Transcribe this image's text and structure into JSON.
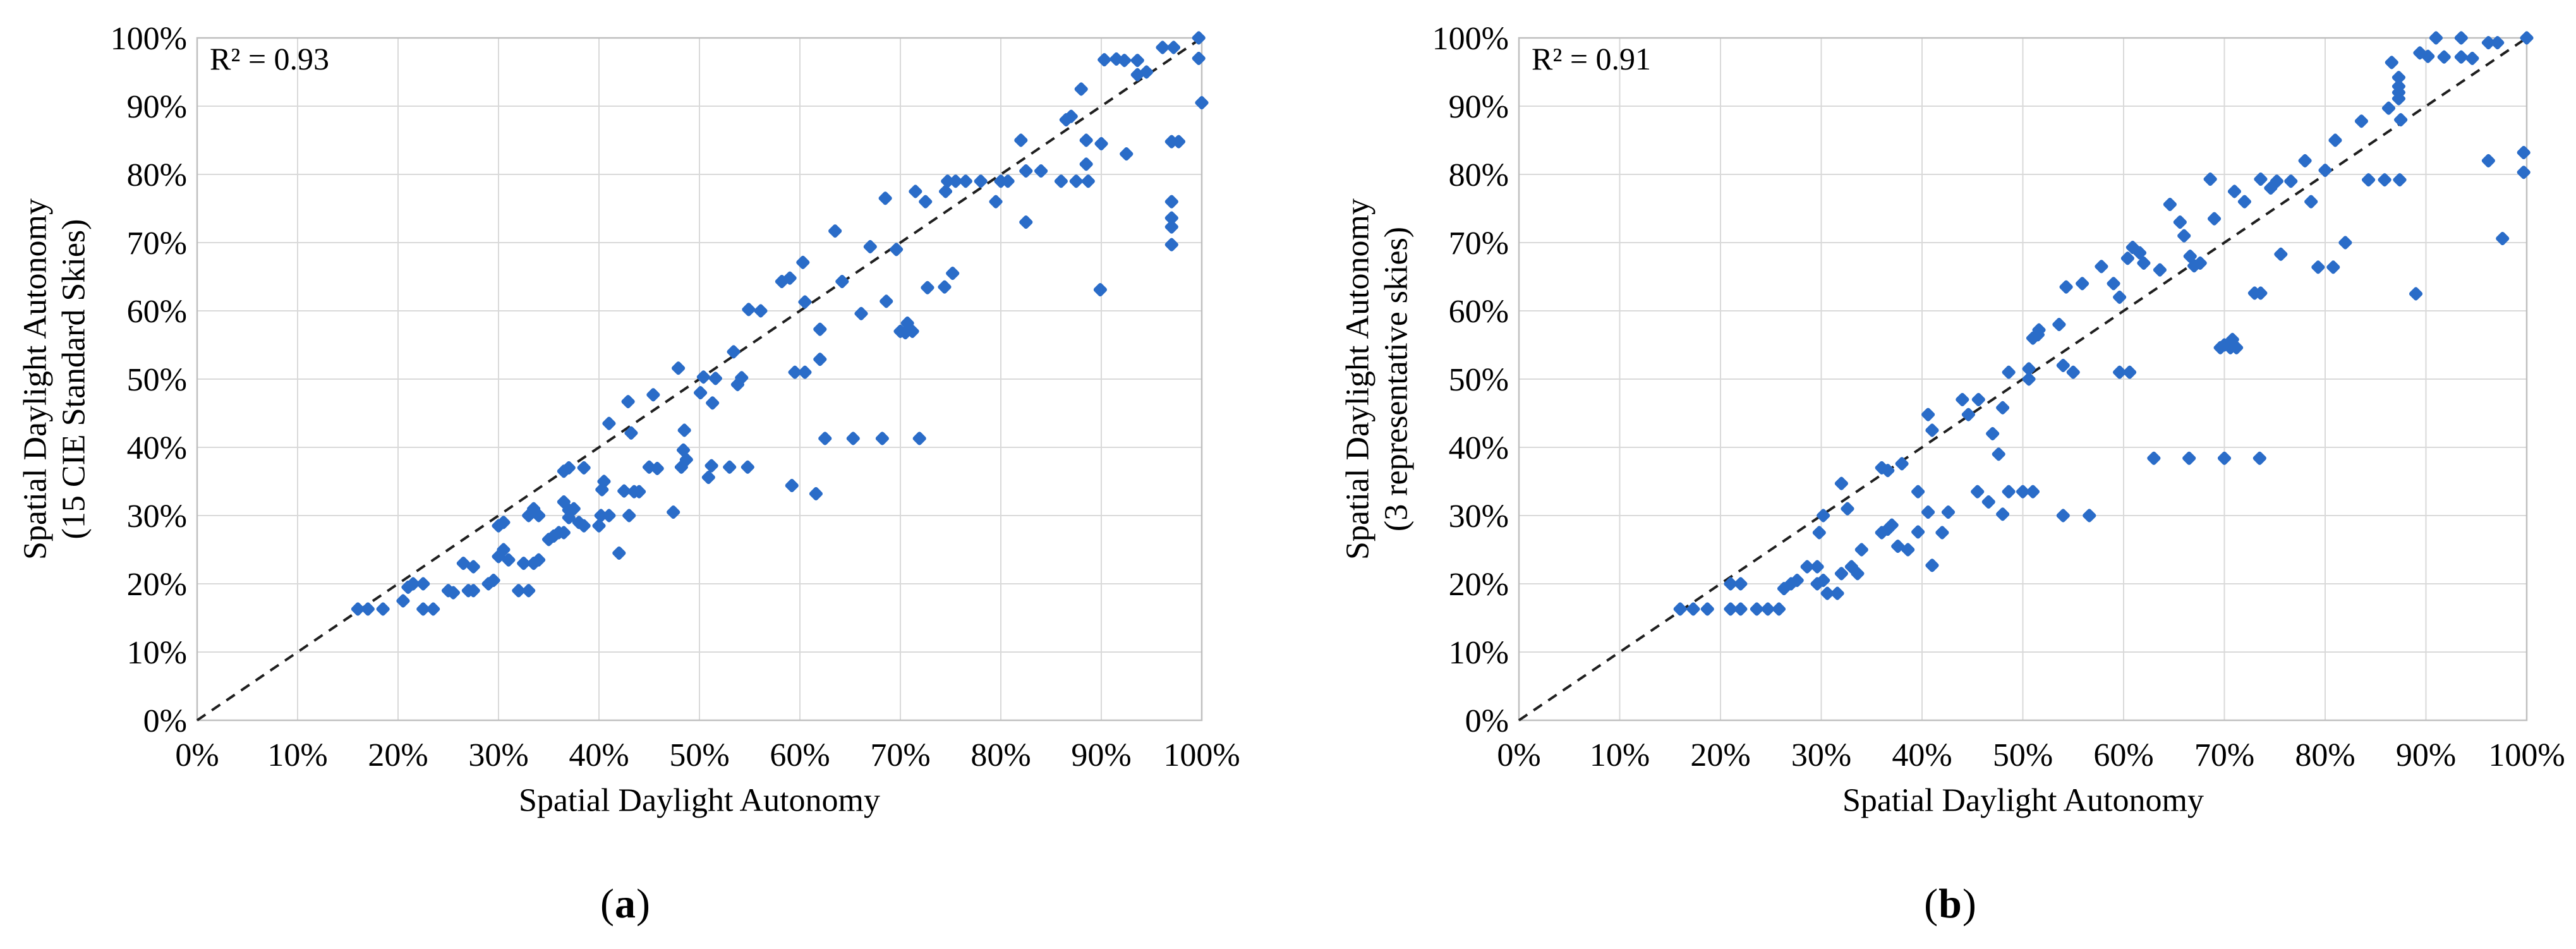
{
  "style": {
    "background": "#ffffff",
    "dot_color": "#2A6CC8",
    "grid_color": "#D9D9D9",
    "frame_color": "#BFBFBF",
    "identity_line_color": "#1F1F1F",
    "text_color": "#000000"
  },
  "chart_data": [
    {
      "type": "scatter",
      "panel": "a",
      "annotation": "R² = 0.93",
      "xlabel": "Spatial Daylight Autonomy",
      "ylabel_line1": "Spatial Daylight Autonomy",
      "ylabel_line2": "(15 CIE Standard Skies)",
      "caption": {
        "open": "(",
        "letter": "a",
        "close": ")"
      },
      "xlim": [
        0,
        100
      ],
      "ylim": [
        0,
        100
      ],
      "grid": true,
      "reference_line": "dashed identity line y = x from 0% to 100%",
      "x_tick_labels": [
        "0%",
        "10%",
        "20%",
        "30%",
        "40%",
        "50%",
        "60%",
        "70%",
        "80%",
        "90%",
        "100%"
      ],
      "y_tick_labels": [
        "0%",
        "10%",
        "20%",
        "30%",
        "40%",
        "50%",
        "60%",
        "70%",
        "80%",
        "90%",
        "100%"
      ],
      "points": [
        [
          16,
          16.3
        ],
        [
          17,
          16.3
        ],
        [
          18.5,
          16.3
        ],
        [
          20.5,
          17.5
        ],
        [
          21,
          19.5
        ],
        [
          21.5,
          20
        ],
        [
          22.5,
          20
        ],
        [
          22.5,
          16.3
        ],
        [
          23.5,
          16.3
        ],
        [
          25,
          19
        ],
        [
          25.5,
          18.7
        ],
        [
          27,
          19
        ],
        [
          27.5,
          19
        ],
        [
          26.5,
          23
        ],
        [
          27.5,
          22.5
        ],
        [
          29,
          20
        ],
        [
          29.5,
          20.5
        ],
        [
          30,
          24
        ],
        [
          30.5,
          25
        ],
        [
          31,
          23.5
        ],
        [
          30,
          28.5
        ],
        [
          30.5,
          29
        ],
        [
          32,
          19
        ],
        [
          33,
          19
        ],
        [
          32.5,
          23
        ],
        [
          33.5,
          23
        ],
        [
          34,
          23.5
        ],
        [
          33,
          30
        ],
        [
          33.5,
          31
        ],
        [
          34,
          30
        ],
        [
          35,
          26.5
        ],
        [
          35.5,
          27
        ],
        [
          36,
          27.5
        ],
        [
          36.5,
          27.5
        ],
        [
          36.5,
          32
        ],
        [
          37,
          30.8
        ],
        [
          37,
          29.7
        ],
        [
          37.5,
          31
        ],
        [
          38,
          29
        ],
        [
          38.5,
          28.5
        ],
        [
          36.5,
          36.5
        ],
        [
          37,
          37
        ],
        [
          38.5,
          37
        ],
        [
          40,
          28.5
        ],
        [
          40.2,
          30
        ],
        [
          41,
          30
        ],
        [
          40.5,
          35
        ],
        [
          40.3,
          33.8
        ],
        [
          42.5,
          33.6
        ],
        [
          41,
          43.5
        ],
        [
          42,
          24.5
        ],
        [
          43,
          30
        ],
        [
          43.5,
          33.5
        ],
        [
          44,
          33.5
        ],
        [
          43.2,
          42.1
        ],
        [
          42.9,
          46.7
        ],
        [
          45.4,
          47.7
        ],
        [
          45,
          37.1
        ],
        [
          45.8,
          36.9
        ],
        [
          48.2,
          37.1
        ],
        [
          48.4,
          39.6
        ],
        [
          48.7,
          38.2
        ],
        [
          51.2,
          37.3
        ],
        [
          53,
          37.1
        ],
        [
          54.8,
          37.1
        ],
        [
          50.9,
          35.6
        ],
        [
          47.4,
          30.5
        ],
        [
          47.9,
          51.6
        ],
        [
          48.5,
          42.5
        ],
        [
          50.4,
          50.3
        ],
        [
          51.6,
          50.1
        ],
        [
          54.2,
          50.2
        ],
        [
          50.1,
          48
        ],
        [
          51.3,
          46.5
        ],
        [
          53.4,
          54
        ],
        [
          53.8,
          49.2
        ],
        [
          59.2,
          34.4
        ],
        [
          61.6,
          33.2
        ],
        [
          54.9,
          60.2
        ],
        [
          56.1,
          60
        ],
        [
          59.5,
          51
        ],
        [
          60.5,
          51
        ],
        [
          58.2,
          64.3
        ],
        [
          59,
          64.8
        ],
        [
          60.3,
          67.1
        ],
        [
          60.5,
          61.3
        ],
        [
          62,
          57.3
        ],
        [
          62,
          52.9
        ],
        [
          62.5,
          41.3
        ],
        [
          65.3,
          41.3
        ],
        [
          68.2,
          41.3
        ],
        [
          71.9,
          41.3
        ],
        [
          63.5,
          71.7
        ],
        [
          64.2,
          64.3
        ],
        [
          66.1,
          59.6
        ],
        [
          67,
          69.4
        ],
        [
          69.6,
          69
        ],
        [
          68.6,
          61.4
        ],
        [
          68.5,
          76.5
        ],
        [
          70,
          57
        ],
        [
          70.5,
          56.8
        ],
        [
          70.7,
          58.2
        ],
        [
          71.2,
          57
        ],
        [
          71.5,
          77.5
        ],
        [
          72.5,
          76
        ],
        [
          72.7,
          63.4
        ],
        [
          74.4,
          63.5
        ],
        [
          74.5,
          77.5
        ],
        [
          74.7,
          79
        ],
        [
          75.2,
          65.5
        ],
        [
          75.5,
          79
        ],
        [
          76.5,
          79
        ],
        [
          78,
          79
        ],
        [
          79.5,
          76
        ],
        [
          80,
          79
        ],
        [
          80.7,
          79
        ],
        [
          82,
          85
        ],
        [
          82.5,
          80.5
        ],
        [
          84,
          80.5
        ],
        [
          82.5,
          73
        ],
        [
          86,
          79
        ],
        [
          86.5,
          88
        ],
        [
          87,
          88.5
        ],
        [
          87.5,
          79
        ],
        [
          88,
          92.5
        ],
        [
          88.5,
          85
        ],
        [
          88.7,
          79
        ],
        [
          88.5,
          81.5
        ],
        [
          89.9,
          63.1
        ],
        [
          90,
          84.5
        ],
        [
          90.3,
          96.8
        ],
        [
          91.5,
          96.9
        ],
        [
          92.3,
          96.7
        ],
        [
          93.6,
          96.7
        ],
        [
          93.6,
          94.6
        ],
        [
          92.5,
          83
        ],
        [
          94.5,
          95
        ],
        [
          96.1,
          98.6
        ],
        [
          97.2,
          98.6
        ],
        [
          97,
          84.8
        ],
        [
          97.7,
          84.8
        ],
        [
          97,
          76
        ],
        [
          97,
          73.6
        ],
        [
          97,
          72.3
        ],
        [
          97,
          69.7
        ],
        [
          99.7,
          100
        ],
        [
          99.7,
          97
        ],
        [
          100,
          90.5
        ]
      ]
    },
    {
      "type": "scatter",
      "panel": "b",
      "annotation": "R² = 0.91",
      "xlabel": "Spatial Daylight Autonomy",
      "ylabel_line1": "Spatial Daylight Autonomy",
      "ylabel_line2": "(3 representative skies)",
      "caption": {
        "open": "(",
        "letter": "b",
        "close": ")"
      },
      "xlim": [
        0,
        100
      ],
      "ylim": [
        0,
        100
      ],
      "grid": true,
      "reference_line": "dashed identity line y = x from 0% to 100%",
      "x_tick_labels": [
        "0%",
        "10%",
        "20%",
        "30%",
        "40%",
        "50%",
        "60%",
        "70%",
        "80%",
        "90%",
        "100%"
      ],
      "y_tick_labels": [
        "0%",
        "10%",
        "20%",
        "30%",
        "40%",
        "50%",
        "60%",
        "70%",
        "80%",
        "90%",
        "100%"
      ],
      "points": [
        [
          16,
          16.3
        ],
        [
          17.3,
          16.3
        ],
        [
          18.7,
          16.3
        ],
        [
          21,
          16.3
        ],
        [
          22,
          16.3
        ],
        [
          23.6,
          16.3
        ],
        [
          24.7,
          16.3
        ],
        [
          25.8,
          16.3
        ],
        [
          21,
          20
        ],
        [
          22,
          20
        ],
        [
          26.3,
          19.3
        ],
        [
          27,
          20
        ],
        [
          27.6,
          20.5
        ],
        [
          28.6,
          22.5
        ],
        [
          29.6,
          22.5
        ],
        [
          29.6,
          20
        ],
        [
          30.2,
          20.5
        ],
        [
          29.8,
          27.5
        ],
        [
          30.2,
          30
        ],
        [
          30.6,
          18.6
        ],
        [
          31.6,
          18.6
        ],
        [
          32,
          21.5
        ],
        [
          32.6,
          31
        ],
        [
          32,
          34.7
        ],
        [
          33,
          22.5
        ],
        [
          33.6,
          21.5
        ],
        [
          34,
          25
        ],
        [
          36,
          27.5
        ],
        [
          36.6,
          28
        ],
        [
          36,
          37
        ],
        [
          36.6,
          36.6
        ],
        [
          37,
          28.6
        ],
        [
          37.6,
          25.5
        ],
        [
          38.6,
          25
        ],
        [
          38,
          37.6
        ],
        [
          39.6,
          33.5
        ],
        [
          39.6,
          27.6
        ],
        [
          40.6,
          30.5
        ],
        [
          41,
          22.7
        ],
        [
          41,
          42.5
        ],
        [
          40.6,
          44.8
        ],
        [
          42,
          27.5
        ],
        [
          42.6,
          30.5
        ],
        [
          44,
          47
        ],
        [
          44.6,
          44.8
        ],
        [
          45.6,
          47
        ],
        [
          45.5,
          33.5
        ],
        [
          46.6,
          32
        ],
        [
          47,
          42
        ],
        [
          47.6,
          39
        ],
        [
          48,
          30.2
        ],
        [
          48.6,
          33.5
        ],
        [
          48,
          45.8
        ],
        [
          48.6,
          51
        ],
        [
          50,
          33.5
        ],
        [
          50.6,
          50
        ],
        [
          50.6,
          51.5
        ],
        [
          51,
          33.5
        ],
        [
          51,
          56
        ],
        [
          51.5,
          56.5
        ],
        [
          51.6,
          57.2
        ],
        [
          53.6,
          58
        ],
        [
          54,
          52
        ],
        [
          54,
          30
        ],
        [
          55,
          51
        ],
        [
          56.6,
          30
        ],
        [
          54.3,
          63.5
        ],
        [
          55.9,
          64
        ],
        [
          57.8,
          66.5
        ],
        [
          59,
          64
        ],
        [
          59.6,
          62
        ],
        [
          59.6,
          51
        ],
        [
          60.6,
          51
        ],
        [
          60.4,
          67.7
        ],
        [
          60.9,
          69.3
        ],
        [
          61.6,
          68.5
        ],
        [
          62,
          67
        ],
        [
          63.6,
          66
        ],
        [
          63,
          38.4
        ],
        [
          66.5,
          38.4
        ],
        [
          70,
          38.4
        ],
        [
          73.5,
          38.4
        ],
        [
          64.6,
          75.6
        ],
        [
          65.6,
          73
        ],
        [
          66,
          71
        ],
        [
          66.6,
          68
        ],
        [
          67,
          66.6
        ],
        [
          67.6,
          67
        ],
        [
          68.6,
          79.3
        ],
        [
          69,
          73.5
        ],
        [
          69.6,
          54.6
        ],
        [
          70,
          55
        ],
        [
          70.6,
          54.6
        ],
        [
          70.8,
          55.8
        ],
        [
          71.2,
          54.6
        ],
        [
          71,
          77.5
        ],
        [
          72,
          76
        ],
        [
          73,
          62.6
        ],
        [
          73.6,
          62.6
        ],
        [
          73.6,
          79.3
        ],
        [
          74.6,
          78
        ],
        [
          75.2,
          79
        ],
        [
          75.6,
          68.3
        ],
        [
          76.6,
          79
        ],
        [
          79.3,
          66.4
        ],
        [
          80.8,
          66.4
        ],
        [
          78,
          82
        ],
        [
          78.6,
          76
        ],
        [
          80,
          80.6
        ],
        [
          81,
          85
        ],
        [
          82,
          70
        ],
        [
          83.6,
          87.8
        ],
        [
          84.3,
          79.2
        ],
        [
          85.9,
          79.2
        ],
        [
          87.4,
          79.2
        ],
        [
          86.3,
          89.7
        ],
        [
          86.6,
          96.4
        ],
        [
          87.3,
          94.2
        ],
        [
          87.3,
          92.9
        ],
        [
          87.3,
          92
        ],
        [
          87.3,
          91.1
        ],
        [
          87.5,
          88
        ],
        [
          89,
          62.5
        ],
        [
          89.4,
          97.8
        ],
        [
          90.2,
          97.3
        ],
        [
          91,
          100
        ],
        [
          93.5,
          100
        ],
        [
          91.8,
          97.2
        ],
        [
          93.5,
          97.2
        ],
        [
          94.6,
          97
        ],
        [
          96.2,
          99.3
        ],
        [
          97.1,
          99.3
        ],
        [
          96.2,
          82
        ],
        [
          97.6,
          70.6
        ],
        [
          100,
          100
        ],
        [
          99.7,
          83.2
        ],
        [
          99.7,
          80.3
        ]
      ]
    }
  ]
}
